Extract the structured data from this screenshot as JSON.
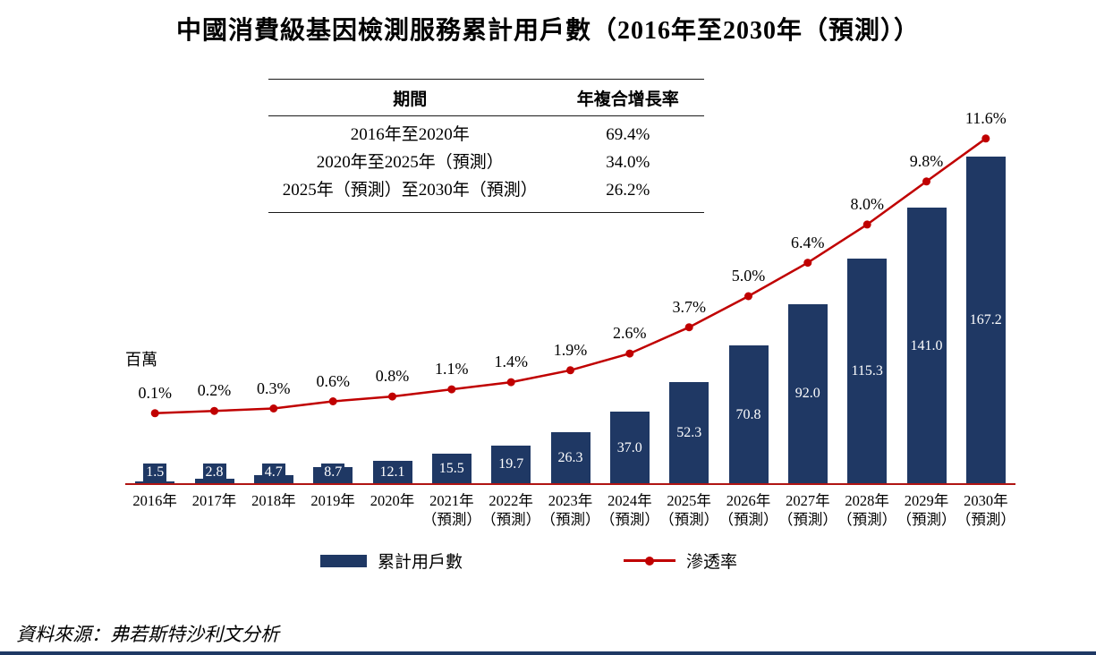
{
  "page": {
    "title": "中國消費級基因檢測服務累計用戶數（2016年至2030年（預測））",
    "source": "資料來源：弗若斯特沙利文分析"
  },
  "cagr_table": {
    "col_period": "期間",
    "col_cagr": "年複合增長率",
    "rows": [
      {
        "period": "2016年至2020年",
        "cagr": "69.4%"
      },
      {
        "period": "2020年至2025年（預測）",
        "cagr": "34.0%"
      },
      {
        "period": "2025年（預測）至2030年（預測）",
        "cagr": "26.2%"
      }
    ]
  },
  "chart_data": {
    "type": "bar",
    "title": "中國消費級基因檢測服務累計用戶數（2016年至2030年（預測））",
    "unit_label": "百萬",
    "legend_position": "bottom",
    "grid": false,
    "y_axis": {
      "label": "百萬",
      "implied_max": 170
    },
    "secondary_axis": {
      "unit": "%",
      "range": [
        0,
        12
      ]
    },
    "categories": [
      {
        "label": "2016年",
        "note": ""
      },
      {
        "label": "2017年",
        "note": ""
      },
      {
        "label": "2018年",
        "note": ""
      },
      {
        "label": "2019年",
        "note": ""
      },
      {
        "label": "2020年",
        "note": ""
      },
      {
        "label": "2021年",
        "note": "（預測）"
      },
      {
        "label": "2022年",
        "note": "（預測）"
      },
      {
        "label": "2023年",
        "note": "（預測）"
      },
      {
        "label": "2024年",
        "note": "（預測）"
      },
      {
        "label": "2025年",
        "note": "（預測）"
      },
      {
        "label": "2026年",
        "note": "（預測）"
      },
      {
        "label": "2027年",
        "note": "（預測）"
      },
      {
        "label": "2028年",
        "note": "（預測）"
      },
      {
        "label": "2029年",
        "note": "（預測）"
      },
      {
        "label": "2030年",
        "note": "（預測）"
      }
    ],
    "series": [
      {
        "name": "累計用戶數",
        "type": "bar",
        "color": "#1F3864",
        "values": [
          1.5,
          2.8,
          4.7,
          8.7,
          12.1,
          15.5,
          19.7,
          26.3,
          37.0,
          52.3,
          70.8,
          92.0,
          115.3,
          141.0,
          167.2
        ],
        "labels": [
          "1.5",
          "2.8",
          "4.7",
          "8.7",
          "12.1",
          "15.5",
          "19.7",
          "26.3",
          "37.0",
          "52.3",
          "70.8",
          "92.0",
          "115.3",
          "141.0",
          "167.2"
        ]
      },
      {
        "name": "滲透率",
        "type": "line",
        "color": "#C00000",
        "values": [
          0.1,
          0.2,
          0.3,
          0.6,
          0.8,
          1.1,
          1.4,
          1.9,
          2.6,
          3.7,
          5.0,
          6.4,
          8.0,
          9.8,
          11.6
        ],
        "labels": [
          "0.1%",
          "0.2%",
          "0.3%",
          "0.6%",
          "0.8%",
          "1.1%",
          "1.4%",
          "1.9%",
          "2.6%",
          "3.7%",
          "5.0%",
          "6.4%",
          "8.0%",
          "9.8%",
          "11.6%"
        ]
      }
    ]
  }
}
